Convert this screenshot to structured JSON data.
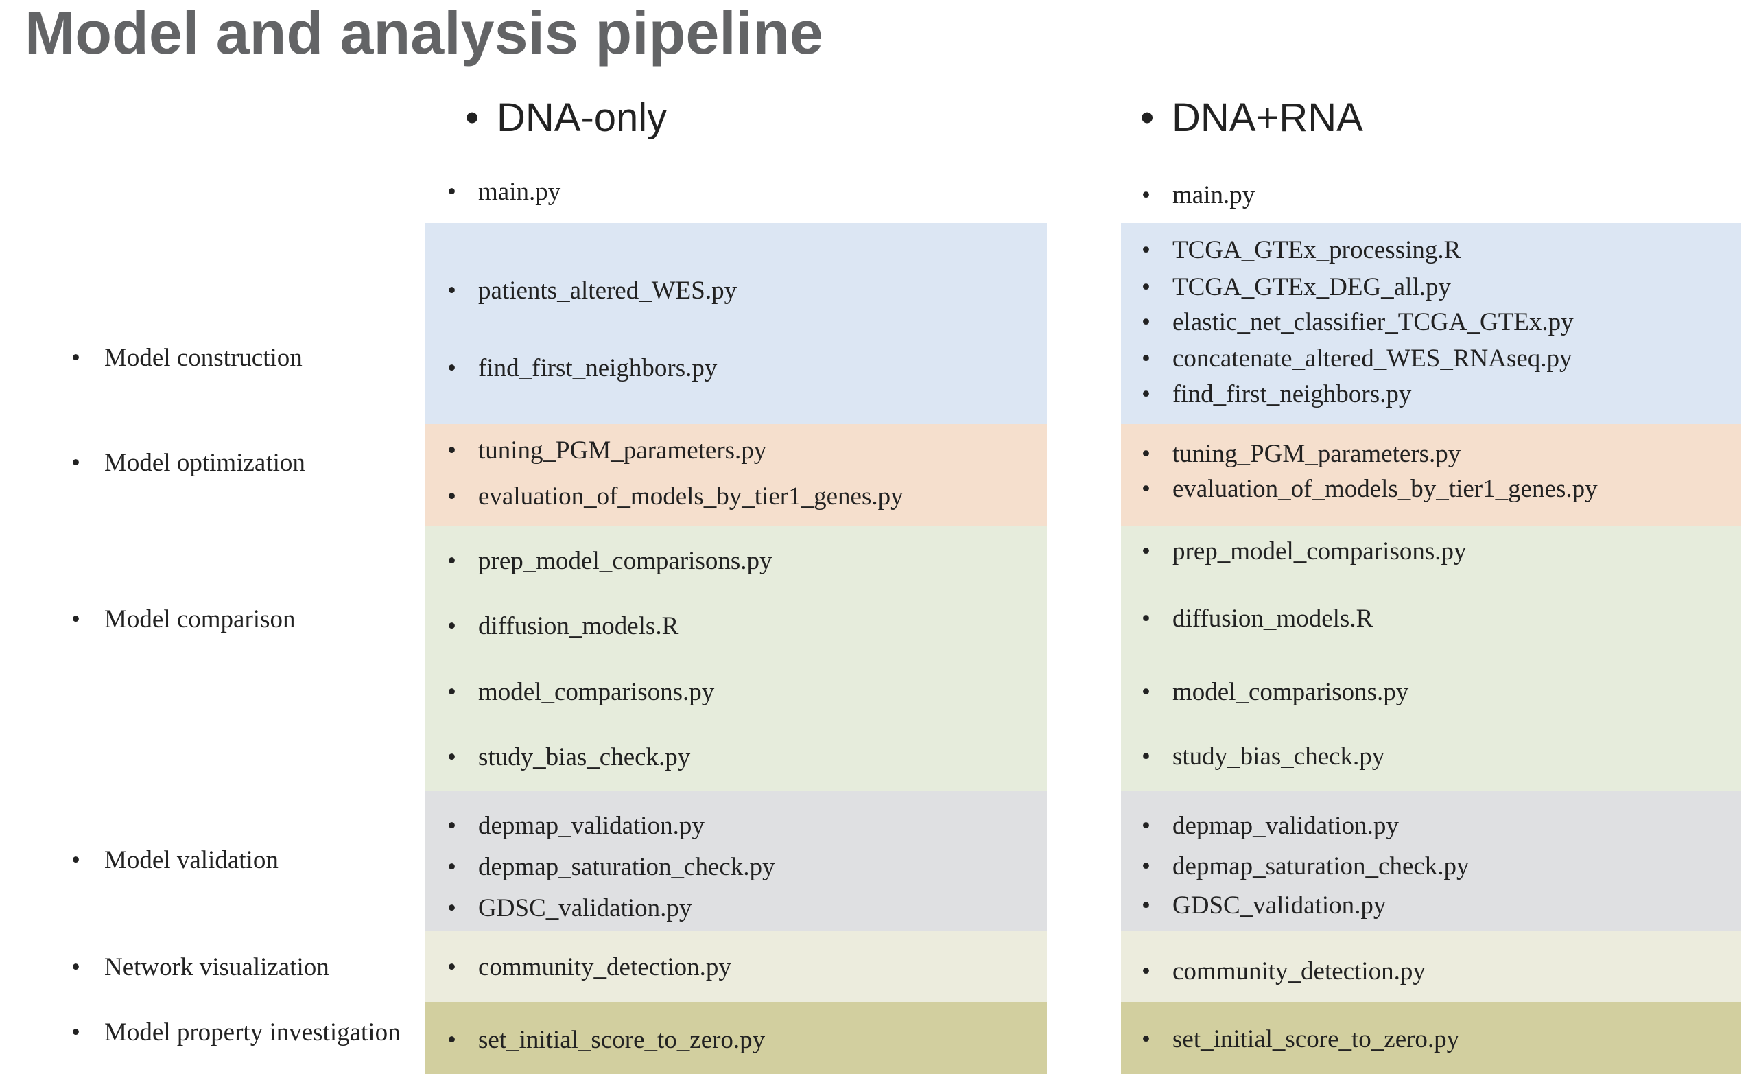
{
  "title": "Model and analysis pipeline",
  "bullet": "•",
  "colors": {
    "title": "#636466",
    "construction": "#dce6f3",
    "optimization": "#f5dfcd",
    "comparison": "#e6ecdc",
    "validation": "#dfe0e2",
    "visualization": "#ececdd",
    "investigation": "#d2cf9f"
  },
  "stages": [
    "Model construction",
    "Model optimization",
    "Model comparison",
    "Model validation",
    "Network visualization",
    "Model property investigation"
  ],
  "columns": [
    {
      "header": "DNA-only",
      "main": "main.py",
      "sections": [
        {
          "stage": "construction",
          "items": [
            "patients_altered_WES.py",
            "find_first_neighbors.py"
          ]
        },
        {
          "stage": "optimization",
          "items": [
            "tuning_PGM_parameters.py",
            "evaluation_of_models_by_tier1_genes.py"
          ]
        },
        {
          "stage": "comparison",
          "items": [
            "prep_model_comparisons.py",
            "diffusion_models.R",
            "model_comparisons.py",
            "study_bias_check.py"
          ]
        },
        {
          "stage": "validation",
          "items": [
            "depmap_validation.py",
            "depmap_saturation_check.py",
            "GDSC_validation.py"
          ]
        },
        {
          "stage": "visualization",
          "items": [
            "community_detection.py"
          ]
        },
        {
          "stage": "investigation",
          "items": [
            "set_initial_score_to_zero.py"
          ]
        }
      ]
    },
    {
      "header": "DNA+RNA",
      "main": "main.py",
      "sections": [
        {
          "stage": "construction",
          "items": [
            "TCGA_GTEx_processing.R",
            "TCGA_GTEx_DEG_all.py",
            "elastic_net_classifier_TCGA_GTEx.py",
            "concatenate_altered_WES_RNAseq.py",
            "find_first_neighbors.py"
          ]
        },
        {
          "stage": "optimization",
          "items": [
            "tuning_PGM_parameters.py",
            "evaluation_of_models_by_tier1_genes.py"
          ]
        },
        {
          "stage": "comparison",
          "items": [
            "prep_model_comparisons.py",
            "diffusion_models.R",
            "model_comparisons.py",
            "study_bias_check.py"
          ]
        },
        {
          "stage": "validation",
          "items": [
            "depmap_validation.py",
            "depmap_saturation_check.py",
            "GDSC_validation.py"
          ]
        },
        {
          "stage": "visualization",
          "items": [
            "community_detection.py"
          ]
        },
        {
          "stage": "investigation",
          "items": [
            "set_initial_score_to_zero.py"
          ]
        }
      ]
    }
  ]
}
